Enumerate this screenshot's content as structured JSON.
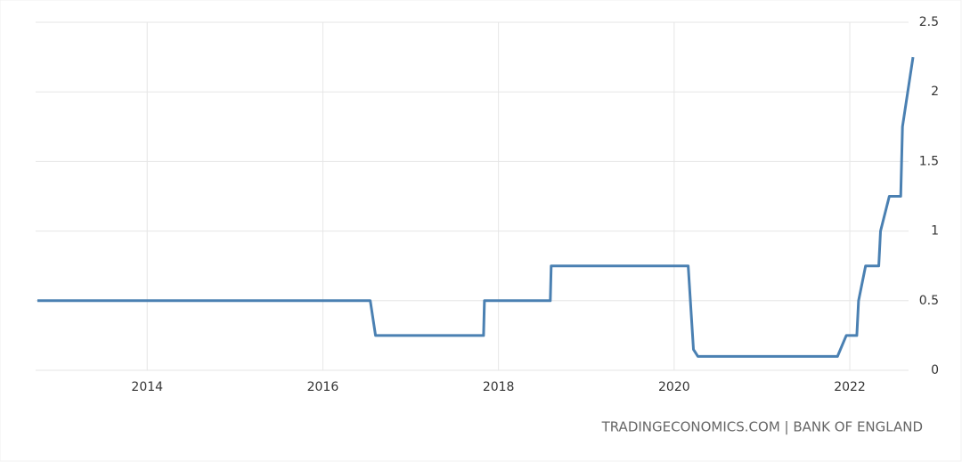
{
  "chart_data": {
    "type": "line",
    "source": "TRADINGECONOMICS.COM | BANK OF ENGLAND",
    "x": [
      2012.75,
      2016.54,
      2016.6,
      2017.83,
      2017.84,
      2018.59,
      2018.6,
      2020.16,
      2020.22,
      2020.27,
      2021.86,
      2021.96,
      2022.08,
      2022.1,
      2022.18,
      2022.33,
      2022.35,
      2022.45,
      2022.58,
      2022.6,
      2022.72
    ],
    "series": [
      {
        "name": "Interest Rate",
        "color": "#4a80b2",
        "values": [
          0.5,
          0.5,
          0.25,
          0.25,
          0.5,
          0.5,
          0.75,
          0.75,
          0.15,
          0.1,
          0.1,
          0.25,
          0.25,
          0.5,
          0.75,
          0.75,
          1,
          1.25,
          1.25,
          1.75,
          2.25
        ]
      }
    ],
    "xlim": [
      2012.75,
      2022.73
    ],
    "xticks": [
      2014,
      2016,
      2018,
      2020,
      2022
    ],
    "ylim": [
      0,
      2.5
    ],
    "yticks": [
      0,
      0.5,
      1,
      1.5,
      2,
      2.5
    ],
    "grid": true
  }
}
